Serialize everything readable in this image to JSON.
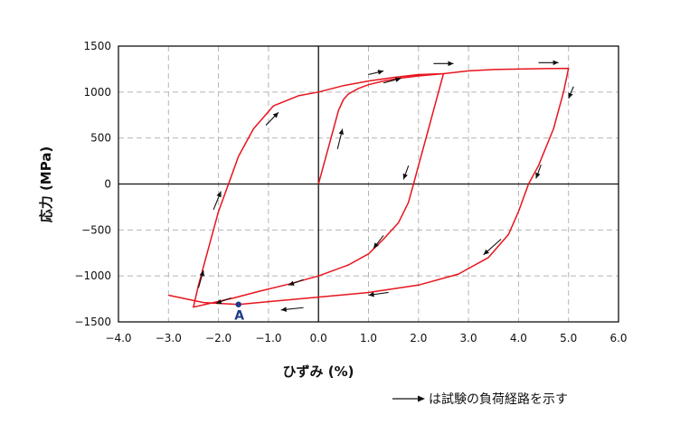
{
  "chart_data": {
    "type": "line",
    "xlabel": "ひずみ (%)",
    "ylabel": "応力 (MPa)",
    "xlim": [
      -4.0,
      6.0
    ],
    "ylim": [
      -1500,
      1500
    ],
    "x_ticks": [
      -4,
      -3,
      -2,
      -1,
      0,
      1,
      2,
      3,
      4,
      5,
      6
    ],
    "y_ticks": [
      -1500,
      -1000,
      -500,
      0,
      500,
      1000,
      1500
    ],
    "x_tick_labels": [
      "−4.0",
      "−3.0",
      "−2.0",
      "−1.0",
      "0.0",
      "1.0",
      "2.0",
      "3.0",
      "4.0",
      "5.0",
      "6.0"
    ],
    "y_tick_labels": [
      "−1500",
      "−1000",
      "−500",
      "0",
      "500",
      "1000",
      "1500"
    ],
    "grid": true,
    "line_color": "#e8141e",
    "series": [
      {
        "values": [
          [
            0,
            0
          ],
          [
            0.1,
            200
          ],
          [
            0.2,
            400
          ],
          [
            0.3,
            600
          ],
          [
            0.4,
            800
          ],
          [
            0.5,
            920
          ],
          [
            0.6,
            980
          ],
          [
            0.8,
            1040
          ],
          [
            1.0,
            1080
          ],
          [
            1.3,
            1120
          ],
          [
            1.6,
            1150
          ],
          [
            2.0,
            1175
          ],
          [
            2.5,
            1200
          ],
          [
            2.4,
            1000
          ],
          [
            2.2,
            600
          ],
          [
            2.0,
            200
          ],
          [
            1.9,
            0
          ],
          [
            1.8,
            -200
          ],
          [
            1.6,
            -420
          ],
          [
            1.3,
            -600
          ],
          [
            1.0,
            -760
          ],
          [
            0.6,
            -880
          ],
          [
            0.0,
            -1000
          ],
          [
            -0.6,
            -1090
          ],
          [
            -1.2,
            -1170
          ],
          [
            -1.7,
            -1240
          ],
          [
            -2.1,
            -1290
          ],
          [
            -2.5,
            -1340
          ],
          [
            -2.4,
            -1100
          ],
          [
            -2.2,
            -700
          ],
          [
            -2.0,
            -300
          ],
          [
            -1.8,
            0
          ],
          [
            -1.6,
            300
          ],
          [
            -1.3,
            600
          ],
          [
            -0.9,
            850
          ],
          [
            -0.4,
            960
          ],
          [
            0.0,
            1000
          ],
          [
            0.5,
            1070
          ],
          [
            1.0,
            1120
          ],
          [
            1.5,
            1160
          ],
          [
            2.0,
            1190
          ],
          [
            2.5,
            1200
          ]
        ]
      },
      {
        "values": [
          [
            2.5,
            1200
          ],
          [
            3.0,
            1230
          ],
          [
            3.5,
            1245
          ],
          [
            4.0,
            1250
          ],
          [
            4.5,
            1255
          ],
          [
            5.0,
            1258
          ],
          [
            4.9,
            1000
          ],
          [
            4.7,
            600
          ],
          [
            4.4,
            200
          ],
          [
            4.2,
            0
          ],
          [
            4.0,
            -300
          ],
          [
            3.8,
            -550
          ],
          [
            3.4,
            -800
          ],
          [
            2.8,
            -980
          ],
          [
            2.0,
            -1100
          ],
          [
            1.0,
            -1180
          ],
          [
            0.0,
            -1230
          ],
          [
            -1.0,
            -1280
          ],
          [
            -1.6,
            -1310
          ],
          [
            -2.3,
            -1290
          ],
          [
            -3.0,
            -1210
          ]
        ]
      }
    ],
    "points": [
      {
        "label": "A",
        "x": -1.6,
        "y": -1310,
        "color": "#1e3a8a"
      }
    ],
    "arrows": [
      {
        "x1": 0.38,
        "y1": 380,
        "x2": 0.48,
        "y2": 600
      },
      {
        "x1": -1.05,
        "y1": 640,
        "x2": -0.8,
        "y2": 780
      },
      {
        "x1": 1.0,
        "y1": 1190,
        "x2": 1.3,
        "y2": 1230
      },
      {
        "x1": 2.3,
        "y1": 1310,
        "x2": 2.7,
        "y2": 1310
      },
      {
        "x1": 4.4,
        "y1": 1320,
        "x2": 4.8,
        "y2": 1320
      },
      {
        "x1": 1.3,
        "y1": 1100,
        "x2": 1.65,
        "y2": 1150
      },
      {
        "x1": 5.1,
        "y1": 1060,
        "x2": 5.0,
        "y2": 930
      },
      {
        "x1": 1.8,
        "y1": 200,
        "x2": 1.7,
        "y2": 50
      },
      {
        "x1": 4.45,
        "y1": 210,
        "x2": 4.35,
        "y2": 60
      },
      {
        "x1": 1.3,
        "y1": -560,
        "x2": 1.1,
        "y2": -700
      },
      {
        "x1": 3.65,
        "y1": -600,
        "x2": 3.3,
        "y2": -770
      },
      {
        "x1": -0.3,
        "y1": -1040,
        "x2": -0.6,
        "y2": -1100
      },
      {
        "x1": 1.4,
        "y1": -1180,
        "x2": 1.0,
        "y2": -1210
      },
      {
        "x1": -0.3,
        "y1": -1345,
        "x2": -0.75,
        "y2": -1370
      },
      {
        "x1": -1.75,
        "y1": -1240,
        "x2": -2.05,
        "y2": -1300
      },
      {
        "x1": -2.4,
        "y1": -1130,
        "x2": -2.3,
        "y2": -940
      },
      {
        "x1": -2.1,
        "y1": -280,
        "x2": -1.95,
        "y2": -80
      }
    ],
    "arrow_color": "#111111"
  },
  "note": {
    "text": "は試験の負荷経路を示す"
  }
}
